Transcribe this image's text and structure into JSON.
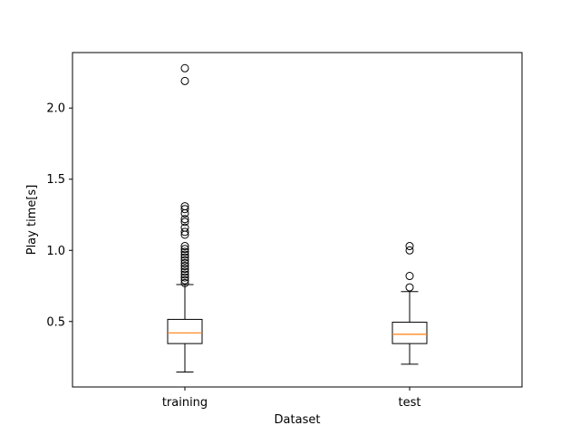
{
  "chart_data": {
    "type": "boxplot",
    "title": "",
    "xlabel": "Dataset",
    "ylabel": "Play time[s]",
    "ylim": [
      0.04,
      2.39
    ],
    "grid": false,
    "legend": "none",
    "y_ticks": [
      {
        "value": 0.5,
        "label": "0.5"
      },
      {
        "value": 1.0,
        "label": "1.0"
      },
      {
        "value": 1.5,
        "label": "1.5"
      },
      {
        "value": 2.0,
        "label": "2.0"
      }
    ],
    "categories": [
      "training",
      "test"
    ],
    "boxes": [
      {
        "name": "training",
        "whisker_low": 0.145,
        "q1": 0.345,
        "median": 0.42,
        "q3": 0.515,
        "whisker_high": 0.76,
        "outliers": [
          0.77,
          0.79,
          0.81,
          0.83,
          0.85,
          0.87,
          0.89,
          0.91,
          0.93,
          0.95,
          0.97,
          0.99,
          1.01,
          1.03,
          1.11,
          1.13,
          1.16,
          1.2,
          1.22,
          1.26,
          1.29,
          1.31,
          2.19,
          2.28
        ]
      },
      {
        "name": "test",
        "whisker_low": 0.2,
        "q1": 0.345,
        "median": 0.41,
        "q3": 0.495,
        "whisker_high": 0.71,
        "outliers": [
          0.74,
          0.82,
          1.0,
          1.03
        ]
      }
    ],
    "colors": {
      "box": "#000000",
      "median": "#ff7f0e",
      "outlier": "#000000"
    }
  }
}
